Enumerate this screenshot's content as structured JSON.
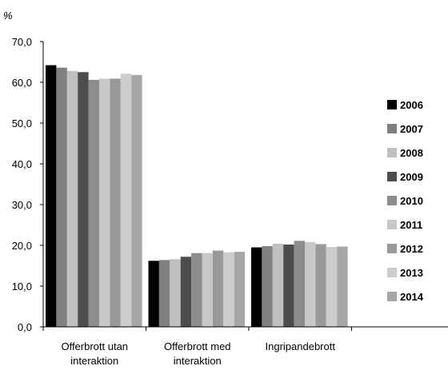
{
  "chart_data": {
    "type": "bar",
    "unit_label": "%",
    "categories": [
      [
        "Offerbrott utan",
        "interaktion"
      ],
      [
        "Offerbrott med",
        "interaktion"
      ],
      [
        "Ingripandebrott"
      ]
    ],
    "ylim": [
      0,
      70
    ],
    "yticks": [
      "0,0",
      "10,0",
      "20,0",
      "30,0",
      "40,0",
      "50,0",
      "60,0",
      "70,0"
    ],
    "grid": false,
    "legend_position": "right",
    "series": [
      {
        "name": "2006",
        "color": "#000000",
        "values": [
          64.2,
          16.2,
          19.5
        ]
      },
      {
        "name": "2007",
        "color": "#808080",
        "values": [
          63.6,
          16.4,
          19.8
        ]
      },
      {
        "name": "2008",
        "color": "#c0c0c0",
        "values": [
          62.8,
          16.6,
          20.4
        ]
      },
      {
        "name": "2009",
        "color": "#4d4d4d",
        "values": [
          62.5,
          17.2,
          20.2
        ]
      },
      {
        "name": "2010",
        "color": "#8c8c8c",
        "values": [
          60.6,
          18.1,
          21.1
        ]
      },
      {
        "name": "2011",
        "color": "#c8c8c8",
        "values": [
          60.9,
          18.1,
          20.8
        ]
      },
      {
        "name": "2012",
        "color": "#999999",
        "values": [
          60.9,
          18.7,
          20.3
        ]
      },
      {
        "name": "2013",
        "color": "#cccccc",
        "values": [
          62.1,
          18.3,
          19.6
        ]
      },
      {
        "name": "2014",
        "color": "#a6a6a6",
        "values": [
          61.8,
          18.4,
          19.7
        ]
      }
    ]
  }
}
